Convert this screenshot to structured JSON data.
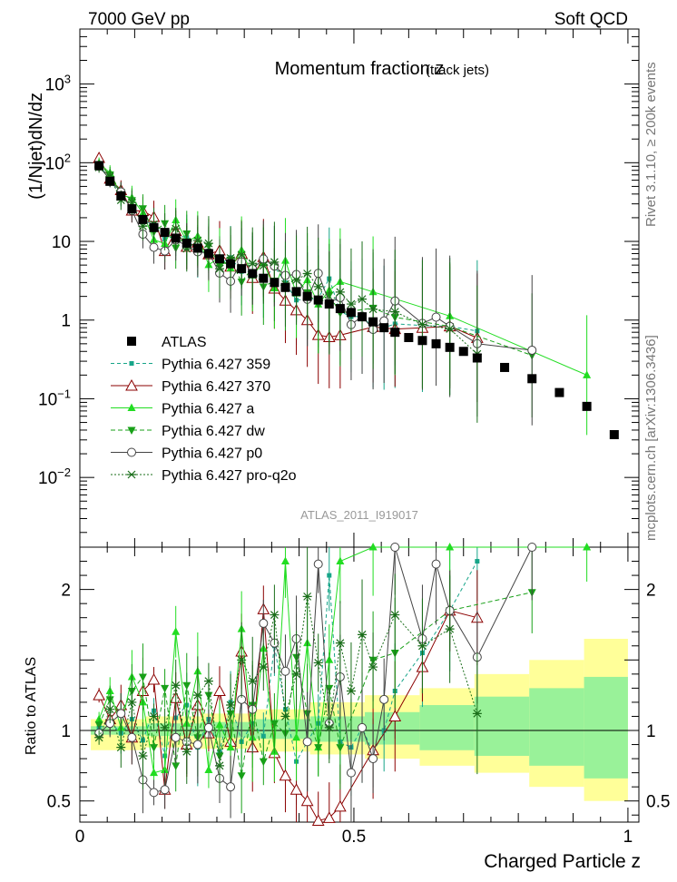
{
  "header": {
    "left": "7000 GeV pp",
    "right": "Soft QCD"
  },
  "side": {
    "rivet": "Rivet 3.1.10, ≥ 200k events",
    "source": "mcplots.cern.ch [arXiv:1306.3436]"
  },
  "main": {
    "title": "Momentum fraction z",
    "subtitle": "(track jets)",
    "ylabel": "(1/Njet)dN/dz",
    "watermark": "ATLAS_2011_I919017",
    "yticks": [
      {
        "label": "10",
        "sup": "3",
        "value": 1000
      },
      {
        "label": "10",
        "sup": "2",
        "value": 100
      },
      {
        "label": "10",
        "sup": "",
        "value": 10
      },
      {
        "label": "1",
        "sup": "",
        "value": 1
      },
      {
        "label": "10",
        "sup": "−1",
        "value": 0.1
      },
      {
        "label": "10",
        "sup": "−2",
        "value": 0.01
      }
    ]
  },
  "ratio": {
    "ylabel": "Ratio to ATLAS",
    "yticks": [
      {
        "label": "2",
        "value": 2
      },
      {
        "label": "1",
        "value": 1
      },
      {
        "label": "0.5",
        "value": 0.5
      }
    ]
  },
  "xaxis": {
    "label": "Charged Particle z",
    "ticks": [
      {
        "label": "0",
        "value": 0
      },
      {
        "label": "0.5",
        "value": 0.5
      },
      {
        "label": "1",
        "value": 1
      }
    ]
  },
  "legend": [
    {
      "label": "ATLAS",
      "color": "#000000",
      "marker": "square"
    },
    {
      "label": "Pythia 6.427 359",
      "color": "#17a589",
      "marker": "smallsquare"
    },
    {
      "label": "Pythia 6.427 370",
      "color": "#8b0000",
      "marker": "triangle-open"
    },
    {
      "label": "Pythia 6.427 a",
      "color": "#22dd22",
      "marker": "triangle-up"
    },
    {
      "label": "Pythia 6.427 dw",
      "color": "#18a018",
      "marker": "triangle-down"
    },
    {
      "label": "Pythia 6.427 p0",
      "color": "#444444",
      "marker": "circle-open"
    },
    {
      "label": "Pythia 6.427 pro-q2o",
      "color": "#1a6e1a",
      "marker": "star"
    }
  ],
  "chart_data": {
    "type": "scatter",
    "title": "Momentum fraction z",
    "xlabel": "Charged Particle z",
    "ylabel": "(1/Njet)dN/dz",
    "xlim": [
      0,
      1.02
    ],
    "ylim": [
      0.0013,
      5000
    ],
    "yscale": "log",
    "ratio_ylim": [
      0.35,
      2.3
    ],
    "ratio_ylabel": "Ratio to ATLAS",
    "ratio_band_edges": [
      0.02,
      0.12,
      0.22,
      0.32,
      0.42,
      0.52,
      0.62,
      0.72,
      0.82,
      0.92,
      1.0
    ],
    "ratio_band_inner": [
      [
        0.97,
        1.03
      ],
      [
        0.96,
        1.05
      ],
      [
        0.95,
        1.06
      ],
      [
        0.94,
        1.08
      ],
      [
        0.92,
        1.1
      ],
      [
        0.9,
        1.13
      ],
      [
        0.86,
        1.18
      ],
      [
        0.82,
        1.24
      ],
      [
        0.75,
        1.3
      ],
      [
        0.66,
        1.38
      ],
      [
        0.64,
        1.5
      ]
    ],
    "ratio_band_outer": [
      [
        0.86,
        1.08
      ],
      [
        0.88,
        1.1
      ],
      [
        0.87,
        1.12
      ],
      [
        0.85,
        1.15
      ],
      [
        0.83,
        1.2
      ],
      [
        0.8,
        1.25
      ],
      [
        0.75,
        1.3
      ],
      [
        0.7,
        1.4
      ],
      [
        0.6,
        1.5
      ],
      [
        0.5,
        1.65
      ],
      [
        0.35,
        1.85
      ]
    ],
    "atlas": {
      "name": "ATLAS",
      "x": [
        0.035,
        0.055,
        0.075,
        0.095,
        0.115,
        0.135,
        0.155,
        0.175,
        0.195,
        0.215,
        0.235,
        0.255,
        0.275,
        0.295,
        0.315,
        0.335,
        0.355,
        0.375,
        0.395,
        0.415,
        0.435,
        0.455,
        0.475,
        0.495,
        0.515,
        0.535,
        0.555,
        0.575,
        0.6,
        0.625,
        0.65,
        0.675,
        0.7,
        0.725,
        0.775,
        0.825,
        0.875,
        0.925,
        0.975
      ],
      "y": [
        92,
        58,
        38,
        26,
        19,
        15,
        13,
        11,
        9.5,
        8.2,
        7,
        6,
        5.2,
        4.5,
        3.9,
        3.4,
        3,
        2.6,
        2.3,
        2,
        1.8,
        1.6,
        1.4,
        1.25,
        1.1,
        0.95,
        0.8,
        0.7,
        0.6,
        0.55,
        0.5,
        0.45,
        0.4,
        0.33,
        0.25,
        0.18,
        0.12,
        0.08,
        0.035
      ]
    },
    "series": [
      {
        "name": "Pythia 6.427 359",
        "x": [
          0.035,
          0.055,
          0.075,
          0.095,
          0.115,
          0.135,
          0.155,
          0.175,
          0.195,
          0.215,
          0.235,
          0.255,
          0.275,
          0.295,
          0.315,
          0.335,
          0.355,
          0.375,
          0.395,
          0.415,
          0.435,
          0.455,
          0.475,
          0.495,
          0.515,
          0.535,
          0.555,
          0.575,
          0.625,
          0.675,
          0.725
        ],
        "ratio": [
          1.02,
          1.06,
          0.98,
          1.08,
          0.93,
          1.14,
          0.82,
          1.09,
          1.18,
          0.88,
          1.08,
          0.85,
          1.2,
          0.92,
          1.05,
          0.96,
          1.6,
          1.15,
          0.78,
          0.92,
          1.05,
          2.1,
          0.92,
          0.88,
          1.02,
          0.84,
          1.0,
          1.28,
          1.55,
          1.85,
          2.2
        ]
      },
      {
        "name": "Pythia 6.427 370",
        "x": [
          0.035,
          0.055,
          0.075,
          0.095,
          0.115,
          0.135,
          0.155,
          0.175,
          0.195,
          0.215,
          0.235,
          0.255,
          0.275,
          0.295,
          0.315,
          0.335,
          0.355,
          0.375,
          0.395,
          0.415,
          0.435,
          0.455,
          0.475,
          0.535,
          0.575,
          0.625,
          0.675,
          0.725
        ],
        "ratio": [
          1.25,
          1.08,
          1.18,
          0.95,
          1.28,
          1.36,
          0.58,
          1.23,
          0.9,
          1.18,
          0.98,
          1.28,
          0.92,
          1.56,
          0.88,
          1.86,
          0.84,
          0.68,
          0.58,
          0.5,
          0.36,
          0.38,
          0.46,
          0.86,
          1.1,
          1.45,
          1.85,
          1.8
        ]
      },
      {
        "name": "Pythia 6.427 a",
        "x": [
          0.035,
          0.055,
          0.075,
          0.095,
          0.115,
          0.135,
          0.155,
          0.175,
          0.195,
          0.215,
          0.235,
          0.255,
          0.275,
          0.295,
          0.315,
          0.335,
          0.355,
          0.375,
          0.395,
          0.415,
          0.435,
          0.455,
          0.475,
          0.535,
          0.675,
          0.925
        ],
        "ratio": [
          1.08,
          1.28,
          1.02,
          1.38,
          1.2,
          0.7,
          0.72,
          1.7,
          1.05,
          1.42,
          0.72,
          1.04,
          0.88,
          1.72,
          0.95,
          1.58,
          0.85,
          2.2,
          0.95,
          1.62,
          0.88,
          1.5,
          2.2,
          2.4,
          2.5,
          2.5
        ]
      },
      {
        "name": "Pythia 6.427 dw",
        "x": [
          0.035,
          0.055,
          0.075,
          0.095,
          0.115,
          0.135,
          0.155,
          0.175,
          0.195,
          0.215,
          0.235,
          0.255,
          0.275,
          0.295,
          0.315,
          0.335,
          0.355,
          0.375,
          0.395,
          0.415,
          0.435,
          0.455,
          0.475,
          0.535,
          0.575,
          0.675,
          0.825
        ],
        "ratio": [
          1.04,
          1.22,
          1.12,
          1.28,
          1.38,
          0.88,
          1.3,
          0.75,
          1.32,
          0.95,
          1.25,
          0.82,
          1.12,
          0.68,
          1.18,
          0.78,
          1.05,
          0.98,
          1.52,
          1.12,
          0.88,
          1.3,
          0.88,
          1.5,
          1.55,
          1.85,
          1.98
        ]
      },
      {
        "name": "Pythia 6.427 p0",
        "x": [
          0.035,
          0.055,
          0.075,
          0.095,
          0.115,
          0.135,
          0.155,
          0.175,
          0.195,
          0.215,
          0.235,
          0.255,
          0.275,
          0.295,
          0.315,
          0.335,
          0.355,
          0.375,
          0.395,
          0.415,
          0.435,
          0.455,
          0.475,
          0.495,
          0.515,
          0.535,
          0.555,
          0.575,
          0.625,
          0.65,
          0.675,
          0.725,
          0.825
        ],
        "ratio": [
          0.98,
          1.05,
          1.12,
          0.95,
          0.65,
          0.56,
          0.58,
          0.95,
          0.92,
          0.9,
          1.02,
          0.66,
          0.6,
          1.22,
          1.15,
          1.76,
          1.62,
          1.42,
          1.65,
          0.92,
          2.18,
          1.05,
          1.38,
          0.7,
          1.02,
          0.8,
          1.22,
          2.5,
          1.65,
          2.18,
          1.85,
          1.52,
          2.3
        ]
      },
      {
        "name": "Pythia 6.427 pro-q2o",
        "x": [
          0.035,
          0.055,
          0.075,
          0.095,
          0.115,
          0.135,
          0.155,
          0.175,
          0.195,
          0.215,
          0.235,
          0.255,
          0.275,
          0.295,
          0.315,
          0.335,
          0.355,
          0.375,
          0.395,
          0.415,
          0.435,
          0.455,
          0.475,
          0.495,
          0.515,
          0.535,
          0.575,
          0.625,
          0.675,
          0.725
        ],
        "ratio": [
          0.95,
          1.15,
          0.88,
          1.2,
          0.82,
          1.1,
          1.02,
          1.32,
          0.85,
          1.25,
          1.35,
          0.75,
          1.18,
          1.5,
          1.35,
          1.45,
          1.82,
          1.1,
          1.4,
          1.95,
          1.48,
          1.02,
          1.62,
          1.28,
          1.68,
          1.45,
          1.82,
          1.6,
          1.72,
          1.12
        ]
      }
    ]
  }
}
